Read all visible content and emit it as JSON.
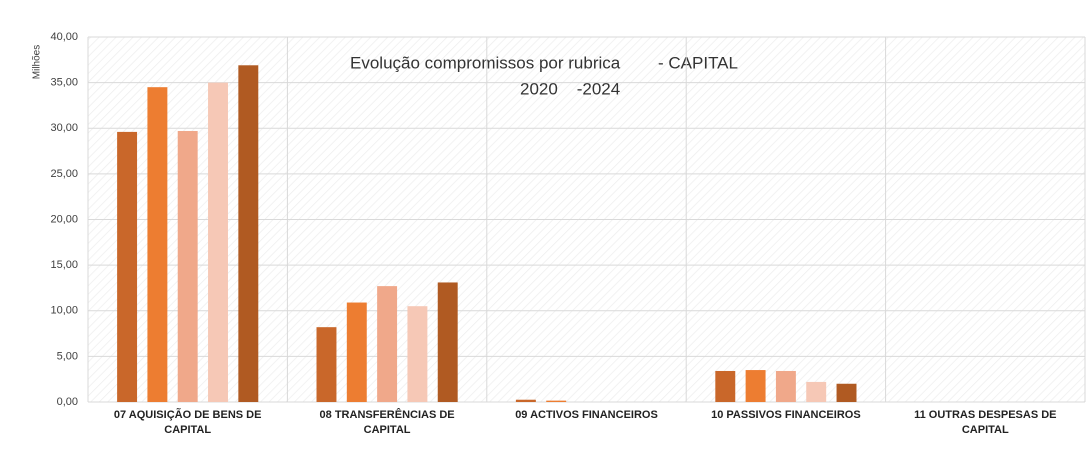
{
  "chart_data": {
    "type": "bar",
    "title": "Evolução compromissos por rubrica        - CAPITAL",
    "subtitle": "2020    -2024",
    "y_label": "Milhões",
    "categories": [
      "07  AQUISIÇÃO DE BENS DE CAPITAL",
      "08  TRANSFERÊNCIAS DE CAPITAL",
      "09  ACTIVOS FINANCEIROS",
      "10  PASSIVOS FINANCEIROS",
      "11  OUTRAS DESPESAS DE CAPITAL"
    ],
    "series": [
      {
        "color": "#c9672a",
        "values": [
          29.6,
          8.2,
          0.25,
          3.4,
          0
        ]
      },
      {
        "color": "#ed7d31",
        "values": [
          34.5,
          10.9,
          0.15,
          3.5,
          0
        ]
      },
      {
        "color": "#f0a88a",
        "values": [
          29.7,
          12.7,
          0,
          3.4,
          0
        ]
      },
      {
        "color": "#f6c8b6",
        "values": [
          35.0,
          10.5,
          0,
          2.2,
          0
        ]
      },
      {
        "color": "#b05a22",
        "values": [
          36.9,
          13.1,
          0,
          2.0,
          0
        ]
      }
    ],
    "ylim": [
      0,
      40
    ],
    "yticks": [
      {
        "value": 0,
        "label": "0,00"
      },
      {
        "value": 5,
        "label": "5,00"
      },
      {
        "value": 10,
        "label": "10,00"
      },
      {
        "value": 15,
        "label": "15,00"
      },
      {
        "value": 20,
        "label": "20,00"
      },
      {
        "value": 25,
        "label": "25,00"
      },
      {
        "value": 30,
        "label": "30,00"
      },
      {
        "value": 35,
        "label": "35,00"
      },
      {
        "value": 40,
        "label": "40,00"
      }
    ],
    "grid": true
  }
}
